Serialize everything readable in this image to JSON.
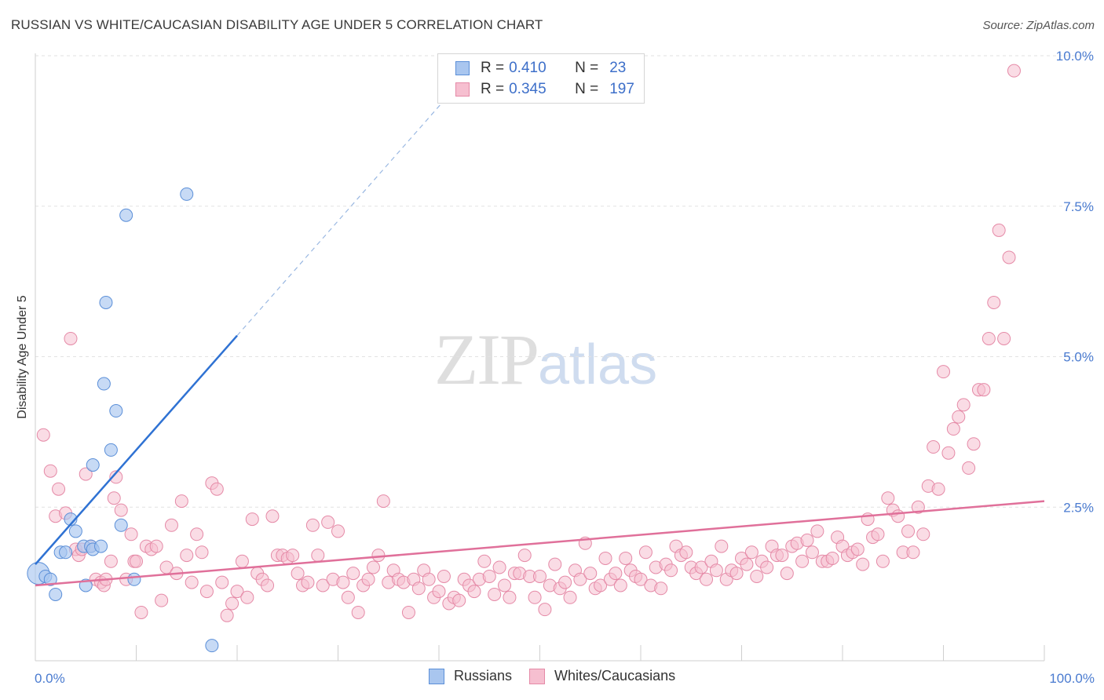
{
  "header": {
    "title": "RUSSIAN VS WHITE/CAUCASIAN DISABILITY AGE UNDER 5 CORRELATION CHART",
    "source": "Source: ZipAtlas.com"
  },
  "legend": {
    "rows": [
      {
        "r_label": "R =",
        "r_value": "0.410",
        "n_label": "N =",
        "n_value": "23",
        "color": "#a9c6ef",
        "border": "#5b8fd8"
      },
      {
        "r_label": "R =",
        "r_value": "0.345",
        "n_label": "N =",
        "n_value": "197",
        "color": "#f6bfd0",
        "border": "#e58aa7"
      }
    ]
  },
  "bottom_legend": [
    {
      "label": "Russians",
      "color": "#a9c6ef",
      "border": "#5b8fd8"
    },
    {
      "label": "Whites/Caucasians",
      "color": "#f6bfd0",
      "border": "#e58aa7"
    }
  ],
  "watermark": {
    "zip": "ZIP",
    "atlas": "atlas"
  },
  "chart_data": {
    "type": "scatter",
    "title": "RUSSIAN VS WHITE/CAUCASIAN DISABILITY AGE UNDER 5 CORRELATION CHART",
    "xlabel": "",
    "ylabel": "Disability Age Under 5",
    "xlim": [
      0,
      100
    ],
    "ylim": [
      0,
      10.5
    ],
    "y_ticks": [
      {
        "value": 2.5,
        "label": "2.5%"
      },
      {
        "value": 5.0,
        "label": "5.0%"
      },
      {
        "value": 7.5,
        "label": "7.5%"
      },
      {
        "value": 10.0,
        "label": "10.0%"
      }
    ],
    "x_tick_labels": [
      {
        "value": 0,
        "label": "0.0%"
      },
      {
        "value": 100,
        "label": "100.0%"
      }
    ],
    "x_minor_ticks": [
      0,
      10,
      20,
      30,
      40,
      50,
      60,
      70,
      80,
      90,
      100
    ],
    "grid": "horizontal-dashed",
    "legend_position": "top-center",
    "series": [
      {
        "name": "Russians",
        "color": "#a9c6ef",
        "stroke": "#5b8fd8",
        "points": [
          [
            0.3,
            1.4
          ],
          [
            1.0,
            1.35
          ],
          [
            1.5,
            1.3
          ],
          [
            2.0,
            1.05
          ],
          [
            2.5,
            1.75
          ],
          [
            3.0,
            1.75
          ],
          [
            3.5,
            2.3
          ],
          [
            4.0,
            2.1
          ],
          [
            4.8,
            1.85
          ],
          [
            5.0,
            1.2
          ],
          [
            5.5,
            1.85
          ],
          [
            5.7,
            1.8
          ],
          [
            5.7,
            3.2
          ],
          [
            6.5,
            1.85
          ],
          [
            6.8,
            4.55
          ],
          [
            7.0,
            5.9
          ],
          [
            7.5,
            3.45
          ],
          [
            8.0,
            4.1
          ],
          [
            8.5,
            2.2
          ],
          [
            9.0,
            7.35
          ],
          [
            9.8,
            1.3
          ],
          [
            15.0,
            7.7
          ],
          [
            17.5,
            0.2
          ]
        ],
        "trend": {
          "x0": 0,
          "y0": 1.55,
          "x1": 20,
          "y1": 5.35,
          "x_dash_end": 41,
          "y_dash_end": 9.35
        }
      },
      {
        "name": "Whites/Caucasians",
        "color": "#f6bfd0",
        "stroke": "#e58aa7",
        "points": [
          [
            0.8,
            3.7
          ],
          [
            1.5,
            3.1
          ],
          [
            2.0,
            2.35
          ],
          [
            2.3,
            2.8
          ],
          [
            3.0,
            2.4
          ],
          [
            3.5,
            5.3
          ],
          [
            4.0,
            1.8
          ],
          [
            4.3,
            1.7
          ],
          [
            4.6,
            1.8
          ],
          [
            5.0,
            3.05
          ],
          [
            5.5,
            1.85
          ],
          [
            6.0,
            1.3
          ],
          [
            6.5,
            1.25
          ],
          [
            6.8,
            1.2
          ],
          [
            7.0,
            1.3
          ],
          [
            7.5,
            1.6
          ],
          [
            7.8,
            2.65
          ],
          [
            8.0,
            3.0
          ],
          [
            8.5,
            2.45
          ],
          [
            9.0,
            1.3
          ],
          [
            9.5,
            2.05
          ],
          [
            9.8,
            1.6
          ],
          [
            10.0,
            1.6
          ],
          [
            10.5,
            0.75
          ],
          [
            11.0,
            1.85
          ],
          [
            11.5,
            1.8
          ],
          [
            12.0,
            1.85
          ],
          [
            12.5,
            0.95
          ],
          [
            13.0,
            1.5
          ],
          [
            13.5,
            2.2
          ],
          [
            14.0,
            1.4
          ],
          [
            14.5,
            2.6
          ],
          [
            15.0,
            1.7
          ],
          [
            15.5,
            1.25
          ],
          [
            16.0,
            2.05
          ],
          [
            16.5,
            1.75
          ],
          [
            17.0,
            1.1
          ],
          [
            17.5,
            2.9
          ],
          [
            18.0,
            2.8
          ],
          [
            18.5,
            1.25
          ],
          [
            19.0,
            0.7
          ],
          [
            19.5,
            0.9
          ],
          [
            20.0,
            1.1
          ],
          [
            20.5,
            1.6
          ],
          [
            21.0,
            1.0
          ],
          [
            21.5,
            2.3
          ],
          [
            22.0,
            1.4
          ],
          [
            22.5,
            1.3
          ],
          [
            23.0,
            1.2
          ],
          [
            23.5,
            2.35
          ],
          [
            24.0,
            1.7
          ],
          [
            24.5,
            1.7
          ],
          [
            25.0,
            1.65
          ],
          [
            25.5,
            1.7
          ],
          [
            26.0,
            1.4
          ],
          [
            26.5,
            1.2
          ],
          [
            27.0,
            1.25
          ],
          [
            27.5,
            2.2
          ],
          [
            28.0,
            1.7
          ],
          [
            28.5,
            1.2
          ],
          [
            29.0,
            2.25
          ],
          [
            29.5,
            1.3
          ],
          [
            30.0,
            2.1
          ],
          [
            30.5,
            1.25
          ],
          [
            31.0,
            1.0
          ],
          [
            31.5,
            1.4
          ],
          [
            32.0,
            0.75
          ],
          [
            32.5,
            1.2
          ],
          [
            33.0,
            1.3
          ],
          [
            33.5,
            1.5
          ],
          [
            34.0,
            1.7
          ],
          [
            34.5,
            2.6
          ],
          [
            35.0,
            1.25
          ],
          [
            35.5,
            1.45
          ],
          [
            36.0,
            1.3
          ],
          [
            36.5,
            1.25
          ],
          [
            37.0,
            0.75
          ],
          [
            37.5,
            1.3
          ],
          [
            38.0,
            1.15
          ],
          [
            38.5,
            1.45
          ],
          [
            39.0,
            1.3
          ],
          [
            39.5,
            1.0
          ],
          [
            40.0,
            1.1
          ],
          [
            40.5,
            1.35
          ],
          [
            41.0,
            0.9
          ],
          [
            41.5,
            1.0
          ],
          [
            42.0,
            0.95
          ],
          [
            42.5,
            1.3
          ],
          [
            43.0,
            1.2
          ],
          [
            43.5,
            1.1
          ],
          [
            44.0,
            1.3
          ],
          [
            44.5,
            1.6
          ],
          [
            45.0,
            1.35
          ],
          [
            45.5,
            1.05
          ],
          [
            46.0,
            1.5
          ],
          [
            46.5,
            1.2
          ],
          [
            47.0,
            1.0
          ],
          [
            47.5,
            1.4
          ],
          [
            48.0,
            1.4
          ],
          [
            48.5,
            1.7
          ],
          [
            49.0,
            1.35
          ],
          [
            49.5,
            1.0
          ],
          [
            50.0,
            1.35
          ],
          [
            50.5,
            0.8
          ],
          [
            51.0,
            1.2
          ],
          [
            51.5,
            1.55
          ],
          [
            52.0,
            1.15
          ],
          [
            52.5,
            1.25
          ],
          [
            53.0,
            1.0
          ],
          [
            53.5,
            1.45
          ],
          [
            54.0,
            1.3
          ],
          [
            54.5,
            1.9
          ],
          [
            55.0,
            1.4
          ],
          [
            55.5,
            1.15
          ],
          [
            56.0,
            1.2
          ],
          [
            56.5,
            1.65
          ],
          [
            57.0,
            1.3
          ],
          [
            57.5,
            1.4
          ],
          [
            58.0,
            1.2
          ],
          [
            58.5,
            1.65
          ],
          [
            59.0,
            1.45
          ],
          [
            59.5,
            1.35
          ],
          [
            60.0,
            1.3
          ],
          [
            60.5,
            1.75
          ],
          [
            61.0,
            1.2
          ],
          [
            61.5,
            1.5
          ],
          [
            62.0,
            1.15
          ],
          [
            62.5,
            1.55
          ],
          [
            63.0,
            1.45
          ],
          [
            63.5,
            1.85
          ],
          [
            64.0,
            1.7
          ],
          [
            64.5,
            1.75
          ],
          [
            65.0,
            1.5
          ],
          [
            65.5,
            1.4
          ],
          [
            66.0,
            1.5
          ],
          [
            66.5,
            1.3
          ],
          [
            67.0,
            1.6
          ],
          [
            67.5,
            1.45
          ],
          [
            68.0,
            1.85
          ],
          [
            68.5,
            1.3
          ],
          [
            69.0,
            1.45
          ],
          [
            69.5,
            1.4
          ],
          [
            70.0,
            1.65
          ],
          [
            70.5,
            1.55
          ],
          [
            71.0,
            1.75
          ],
          [
            71.5,
            1.35
          ],
          [
            72.0,
            1.6
          ],
          [
            72.5,
            1.5
          ],
          [
            73.0,
            1.85
          ],
          [
            73.5,
            1.7
          ],
          [
            74.0,
            1.7
          ],
          [
            74.5,
            1.4
          ],
          [
            75.0,
            1.85
          ],
          [
            75.5,
            1.9
          ],
          [
            76.0,
            1.6
          ],
          [
            76.5,
            1.95
          ],
          [
            77.0,
            1.75
          ],
          [
            77.5,
            2.1
          ],
          [
            78.0,
            1.6
          ],
          [
            78.5,
            1.6
          ],
          [
            79.0,
            1.65
          ],
          [
            79.5,
            2.0
          ],
          [
            80.0,
            1.85
          ],
          [
            80.5,
            1.7
          ],
          [
            81.0,
            1.75
          ],
          [
            81.5,
            1.8
          ],
          [
            82.0,
            1.55
          ],
          [
            82.5,
            2.3
          ],
          [
            83.0,
            2.0
          ],
          [
            83.5,
            2.05
          ],
          [
            84.0,
            1.6
          ],
          [
            84.5,
            2.65
          ],
          [
            85.0,
            2.45
          ],
          [
            85.5,
            2.35
          ],
          [
            86.0,
            1.75
          ],
          [
            86.5,
            2.1
          ],
          [
            87.0,
            1.75
          ],
          [
            87.5,
            2.5
          ],
          [
            88.0,
            2.05
          ],
          [
            88.5,
            2.85
          ],
          [
            89.0,
            3.5
          ],
          [
            89.5,
            2.8
          ],
          [
            90.0,
            4.75
          ],
          [
            90.5,
            3.4
          ],
          [
            91.0,
            3.8
          ],
          [
            91.5,
            4.0
          ],
          [
            92.0,
            4.2
          ],
          [
            92.5,
            3.15
          ],
          [
            93.0,
            3.55
          ],
          [
            93.5,
            4.45
          ],
          [
            94.0,
            4.45
          ],
          [
            94.5,
            5.3
          ],
          [
            95.0,
            5.9
          ],
          [
            95.5,
            7.1
          ],
          [
            96.0,
            5.3
          ],
          [
            96.5,
            6.65
          ],
          [
            97.0,
            9.75
          ]
        ],
        "trend": {
          "x0": 0,
          "y0": 1.2,
          "x1": 100,
          "y1": 2.6
        }
      }
    ]
  }
}
